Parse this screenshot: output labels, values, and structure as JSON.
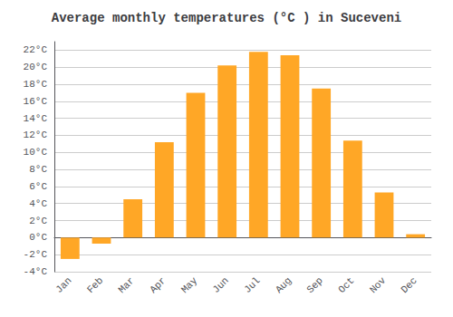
{
  "chart_data": {
    "type": "bar",
    "title": "Average monthly temperatures (°C ) in Suceveni",
    "categories": [
      "Jan",
      "Feb",
      "Mar",
      "Apr",
      "May",
      "Jun",
      "Jul",
      "Aug",
      "Sep",
      "Oct",
      "Nov",
      "Dec"
    ],
    "values": [
      -2.5,
      -0.7,
      4.5,
      11.2,
      17.0,
      20.2,
      21.8,
      21.4,
      17.5,
      11.4,
      5.3,
      0.4
    ],
    "color": "#FFA726",
    "ylim": [
      -4,
      23
    ],
    "yticks": [
      {
        "value": -4,
        "label": "-4°C"
      },
      {
        "value": -2,
        "label": "-2°C"
      },
      {
        "value": 0,
        "label": "0°C"
      },
      {
        "value": 2,
        "label": "2°C"
      },
      {
        "value": 4,
        "label": "4°C"
      },
      {
        "value": 6,
        "label": "6°C"
      },
      {
        "value": 8,
        "label": "8°C"
      },
      {
        "value": 10,
        "label": "10°C"
      },
      {
        "value": 12,
        "label": "12°C"
      },
      {
        "value": 14,
        "label": "14°C"
      },
      {
        "value": 16,
        "label": "16°C"
      },
      {
        "value": 18,
        "label": "18°C"
      },
      {
        "value": 20,
        "label": "20°C"
      },
      {
        "value": 22,
        "label": "22°C"
      }
    ],
    "grid": true
  }
}
